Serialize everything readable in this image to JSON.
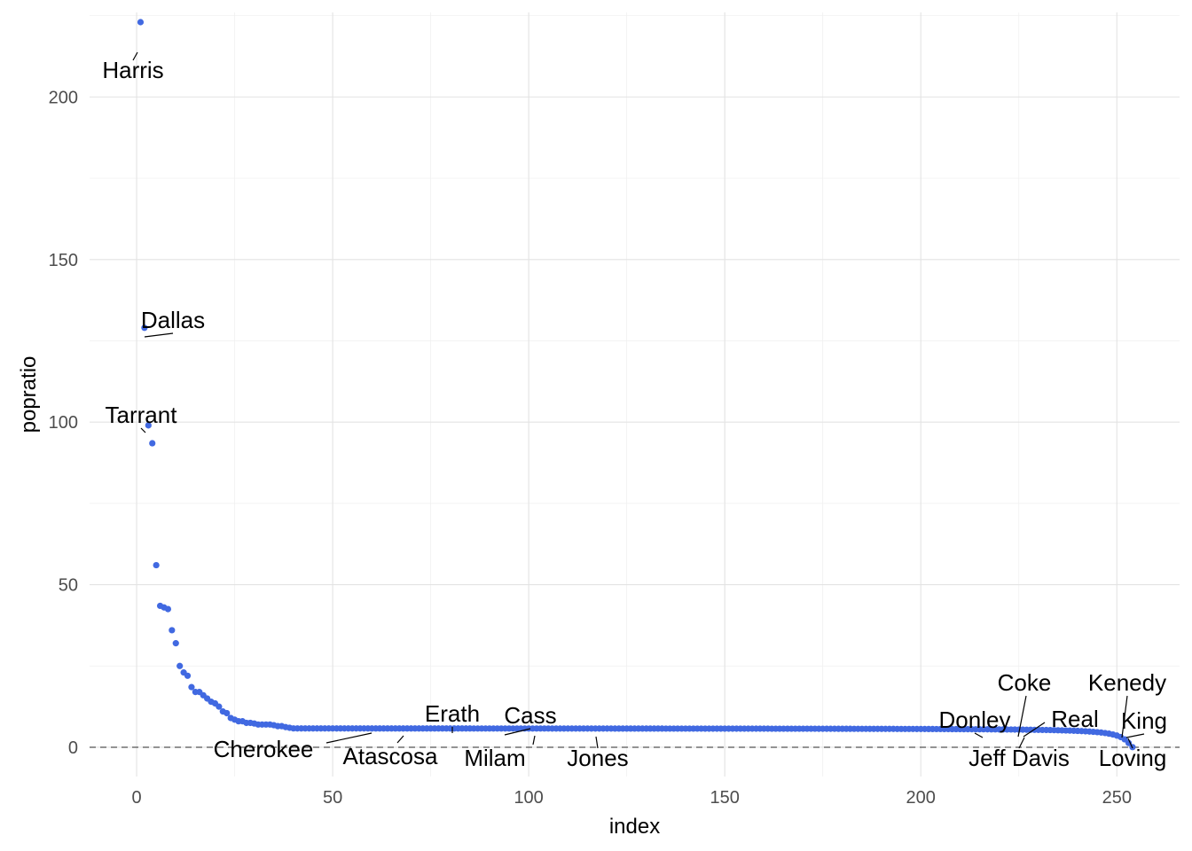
{
  "chart_data": {
    "type": "scatter",
    "xlabel": "index",
    "ylabel": "popratio",
    "xlim": [
      -12,
      266
    ],
    "ylim": [
      -9,
      226
    ],
    "x_ticks": [
      0,
      50,
      100,
      150,
      200,
      250
    ],
    "y_ticks": [
      0,
      50,
      100,
      150,
      200
    ],
    "grid": true,
    "reference_line": {
      "y": 0,
      "style": "dashed"
    },
    "point_color": "#4169E1",
    "head_values": [
      223,
      129,
      99,
      93.5,
      56,
      43.5,
      43,
      42.5,
      36,
      32,
      25,
      23,
      22,
      18.5,
      17,
      17,
      16,
      15,
      14,
      13.5,
      12.5,
      11,
      10.5,
      9,
      8.5,
      8,
      8,
      7.5,
      7.5,
      7.3,
      7,
      7,
      7,
      7,
      6.8,
      6.5,
      6.5,
      6.2,
      6,
      5.8
    ],
    "total_points": 254,
    "labels": [
      {
        "text": "Harris",
        "x": 1,
        "y": 223
      },
      {
        "text": "Dallas",
        "x": 2,
        "y": 129
      },
      {
        "text": "Tarrant",
        "x": 3,
        "y": 99
      },
      {
        "text": "Cherokee",
        "x": 61,
        "y": 2.5
      },
      {
        "text": "Atascosa",
        "x": 68,
        "y": 2
      },
      {
        "text": "Erath",
        "x": 81,
        "y": 2.2
      },
      {
        "text": "Cass",
        "x": 94,
        "y": 1.9
      },
      {
        "text": "Milam",
        "x": 102,
        "y": 1.5
      },
      {
        "text": "Jones",
        "x": 118,
        "y": 1.2
      },
      {
        "text": "Donley",
        "x": 217,
        "y": 0.5
      },
      {
        "text": "Jeff Davis",
        "x": 226,
        "y": 0.3
      },
      {
        "text": "Coke",
        "x": 224,
        "y": 0.4
      },
      {
        "text": "Real",
        "x": 227,
        "y": 0.35
      },
      {
        "text": "Kenedy",
        "x": 251,
        "y": 0.1
      },
      {
        "text": "King",
        "x": 252,
        "y": 0.08
      },
      {
        "text": "Loving",
        "x": 253,
        "y": 0.05
      }
    ]
  }
}
